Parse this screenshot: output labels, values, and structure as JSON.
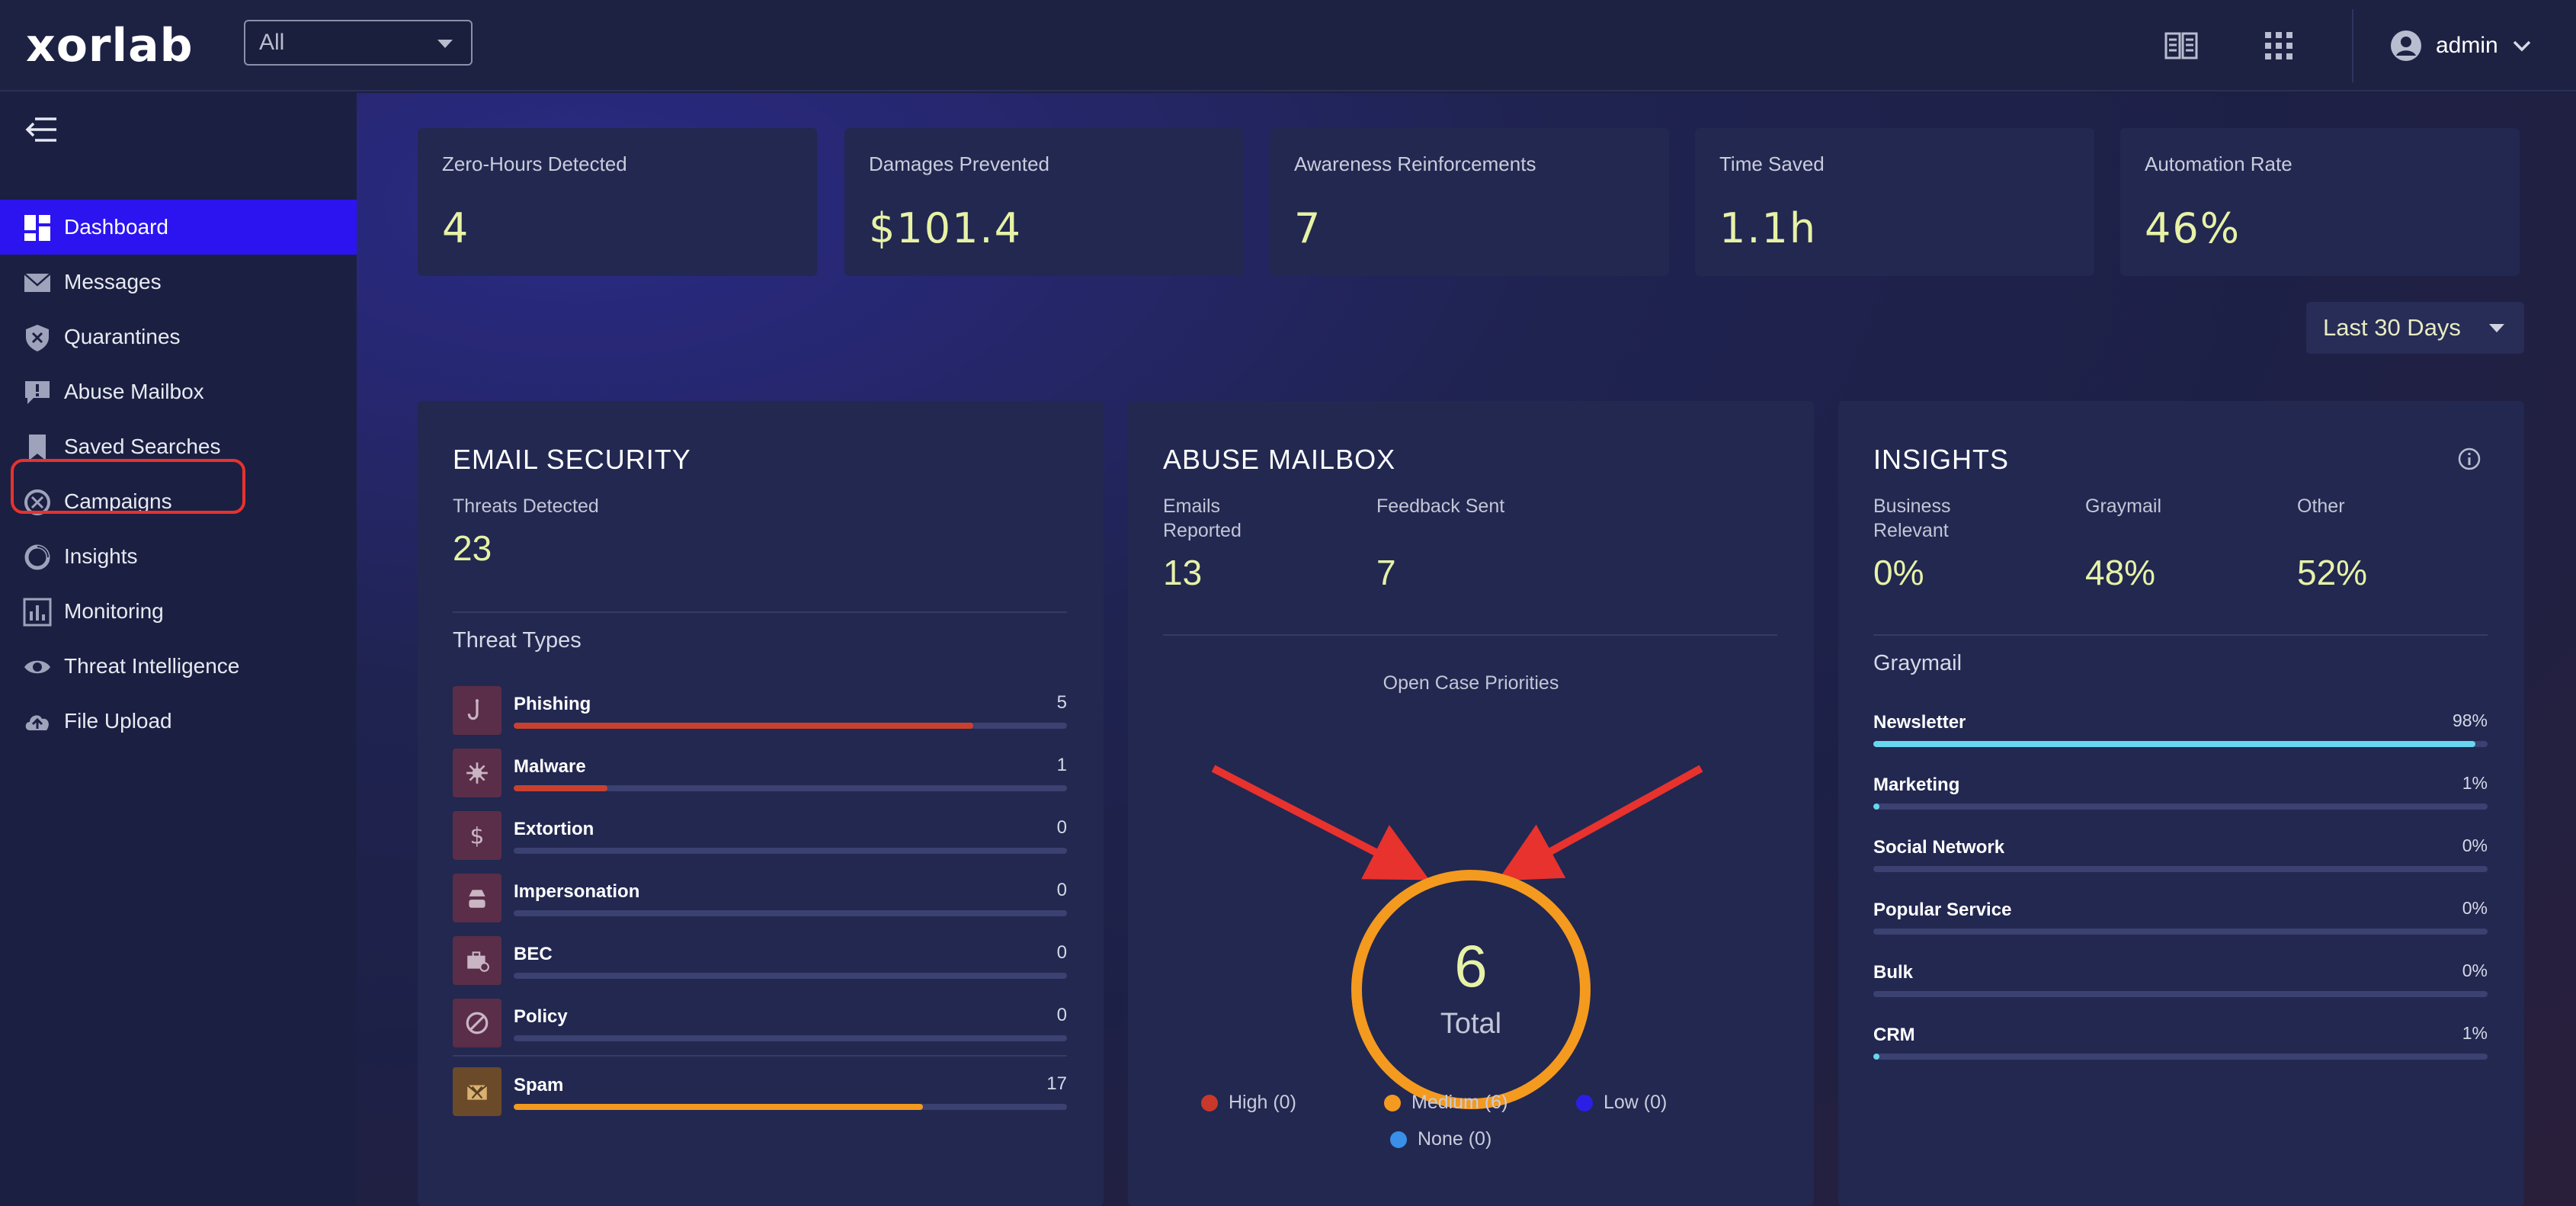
{
  "header": {
    "logo": "xorlab",
    "tenant_select": "All",
    "user": "admin"
  },
  "sidebar": {
    "items": [
      {
        "label": "Dashboard",
        "icon": "dashboard-icon",
        "active": true
      },
      {
        "label": "Messages",
        "icon": "envelope-icon"
      },
      {
        "label": "Quarantines",
        "icon": "shield-x-icon"
      },
      {
        "label": "Abuse Mailbox",
        "icon": "speech-bubble-alert-icon"
      },
      {
        "label": "Saved Searches",
        "icon": "bookmark-icon"
      },
      {
        "label": "Campaigns",
        "icon": "campaign-icon"
      },
      {
        "label": "Insights",
        "icon": "ring-chart-icon"
      },
      {
        "label": "Monitoring",
        "icon": "bar-chart-icon"
      },
      {
        "label": "Threat Intelligence",
        "icon": "eye-icon"
      },
      {
        "label": "File Upload",
        "icon": "cloud-upload-icon"
      }
    ]
  },
  "kpis": [
    {
      "label": "Zero-Hours Detected",
      "value": "4"
    },
    {
      "label": "Damages Prevented",
      "value": "$101.4"
    },
    {
      "label": "Awareness Reinforcements",
      "value": "7"
    },
    {
      "label": "Time Saved",
      "value": "1.1h"
    },
    {
      "label": "Automation Rate",
      "value": "46%"
    }
  ],
  "date_range": "Last 30 Days",
  "email_security": {
    "title": "EMAIL SECURITY",
    "threats_label": "Threats Detected",
    "threats_value": "23",
    "types_label": "Threat Types",
    "types": [
      {
        "name": "Phishing",
        "count": "5",
        "fill": 0.83,
        "color": "#c9412e",
        "icon": "hook-icon"
      },
      {
        "name": "Malware",
        "count": "1",
        "fill": 0.17,
        "color": "#c9412e",
        "icon": "virus-icon"
      },
      {
        "name": "Extortion",
        "count": "0",
        "fill": 0,
        "color": "#c9412e",
        "icon": "dollar-icon"
      },
      {
        "name": "Impersonation",
        "count": "0",
        "fill": 0,
        "color": "#c9412e",
        "icon": "spy-icon"
      },
      {
        "name": "BEC",
        "count": "0",
        "fill": 0,
        "color": "#c9412e",
        "icon": "briefcase-icon"
      },
      {
        "name": "Policy",
        "count": "0",
        "fill": 0,
        "color": "#c9412e",
        "icon": "ban-icon"
      }
    ],
    "spam": {
      "name": "Spam",
      "count": "17",
      "fill": 0.74,
      "color": "#f29a1f",
      "icon": "spam-mail-icon"
    }
  },
  "abuse_mailbox": {
    "title": "ABUSE MAILBOX",
    "reported_label": "Emails\nReported",
    "reported_value": "13",
    "feedback_label": "Feedback Sent",
    "feedback_value": "7",
    "priorities_label": "Open Case Priorities",
    "total_value": "6",
    "total_label": "Total",
    "legend": [
      {
        "label": "High (0)",
        "color": "#c8392b"
      },
      {
        "label": "Medium (6)",
        "color": "#f49a1f"
      },
      {
        "label": "Low (0)",
        "color": "#2b1fe6"
      },
      {
        "label": "None (0)",
        "color": "#3a8fe8"
      }
    ],
    "ring_color": "#f49a1f"
  },
  "insights": {
    "title": "INSIGHTS",
    "business_label": "Business\nRelevant",
    "business_value": "0%",
    "graymail_label": "Graymail",
    "graymail_value": "48%",
    "other_label": "Other",
    "other_value": "52%",
    "section_label": "Graymail",
    "rows": [
      {
        "name": "Newsletter",
        "pct": "98%",
        "fill": 0.98
      },
      {
        "name": "Marketing",
        "pct": "1%",
        "fill": 0.01
      },
      {
        "name": "Social Network",
        "pct": "0%",
        "fill": 0
      },
      {
        "name": "Popular Service",
        "pct": "0%",
        "fill": 0
      },
      {
        "name": "Bulk",
        "pct": "0%",
        "fill": 0
      },
      {
        "name": "CRM",
        "pct": "1%",
        "fill": 0.01
      }
    ]
  },
  "annotation_color": "#e8322e"
}
